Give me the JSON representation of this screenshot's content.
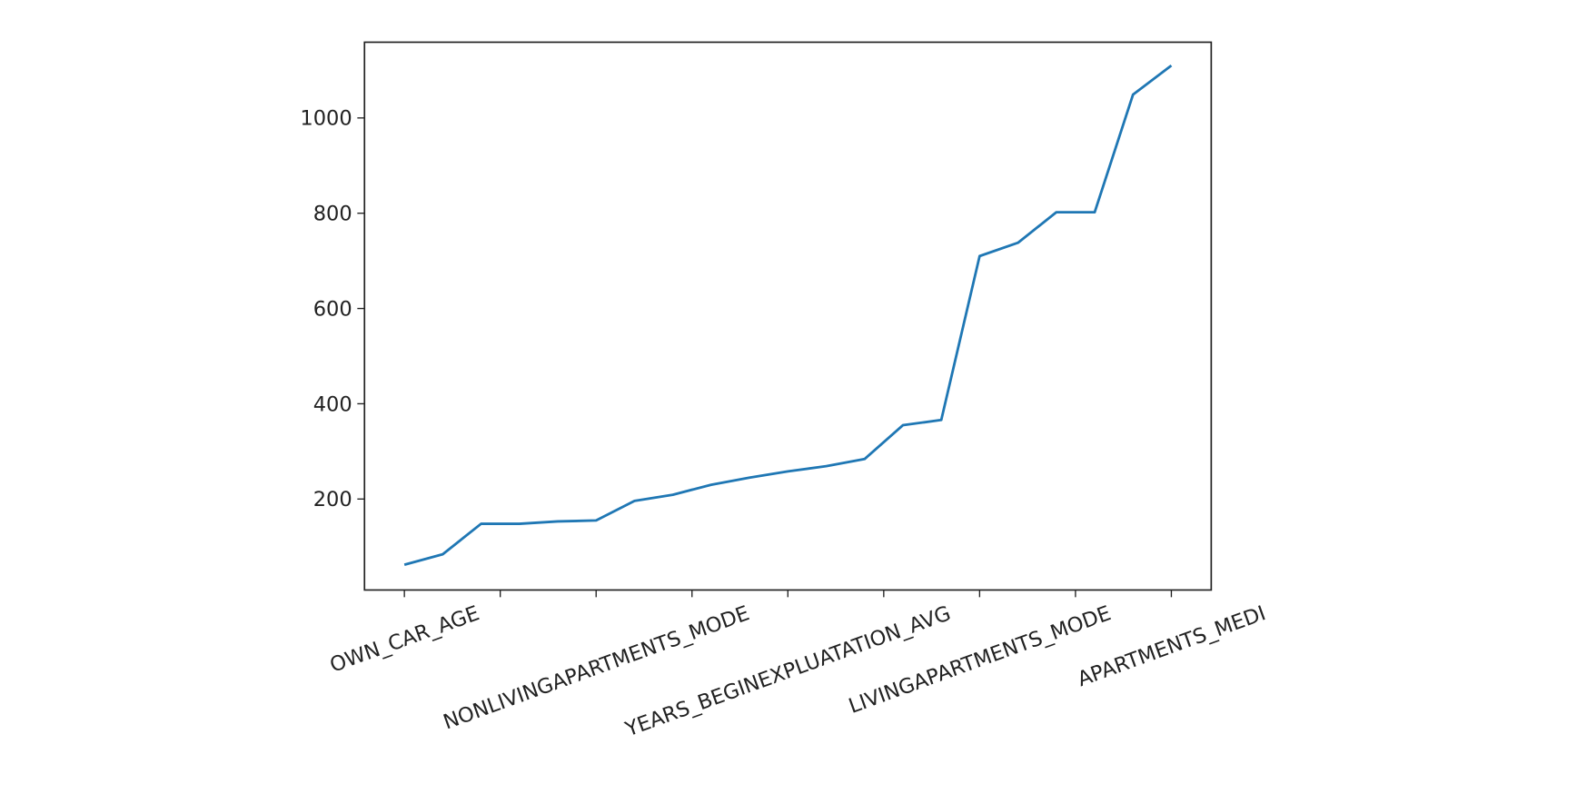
{
  "chart_data": {
    "type": "line",
    "categories": [
      "OWN_CAR_AGE",
      null,
      null,
      null,
      null,
      "NONLIVINGAPARTMENTS_MODE",
      null,
      null,
      null,
      null,
      "YEARS_BEGINEXPLUATATION_AVG",
      null,
      null,
      null,
      null,
      "LIVINGAPARTMENTS_MODE",
      null,
      null,
      null,
      null,
      "APARTMENTS_MEDI"
    ],
    "values": [
      62,
      84,
      148,
      148,
      153,
      155,
      196,
      209,
      230,
      245,
      258,
      269,
      284,
      355,
      366,
      710,
      738,
      802,
      802,
      1049,
      1110
    ],
    "color": "#1f77b4",
    "xlim": [
      -1.04,
      21.04
    ],
    "xticks": [
      0,
      2.5,
      5,
      7.5,
      10,
      12.5,
      15,
      17.5,
      20
    ],
    "ylim": [
      9,
      1159
    ],
    "yticks": [
      200,
      400,
      600,
      800,
      1000
    ]
  }
}
